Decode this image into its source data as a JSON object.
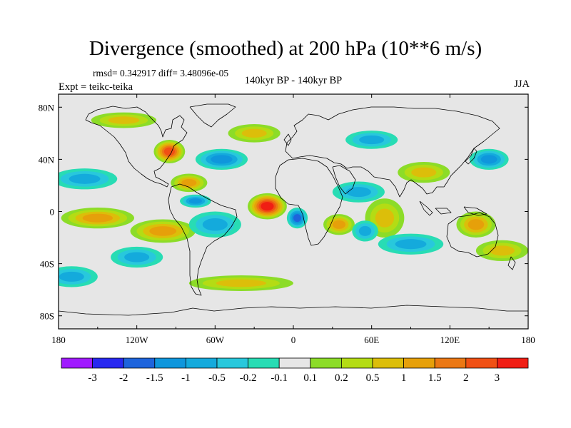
{
  "title": "Divergence (smoothed) at 200 hPa (10**6 m/s)",
  "stats": "rmsd= 0.342917 diff= 3.48096e-05",
  "experiment": "Expt = teikc-teika",
  "period": "140kyr BP - 140kyr BP",
  "season": "JJA",
  "map": {
    "projection": "cylindrical equidistant",
    "lon_range": [
      -180,
      180
    ],
    "lat_range": [
      -90,
      90
    ],
    "lon_ticks": [
      {
        "value": -180,
        "label": "180"
      },
      {
        "value": -120,
        "label": "120W"
      },
      {
        "value": -60,
        "label": "60W"
      },
      {
        "value": 0,
        "label": "0"
      },
      {
        "value": 60,
        "label": "60E"
      },
      {
        "value": 120,
        "label": "120E"
      },
      {
        "value": 180,
        "label": "180"
      }
    ],
    "lat_ticks": [
      {
        "value": 80,
        "label": "80N"
      },
      {
        "value": 40,
        "label": "40N"
      },
      {
        "value": 0,
        "label": "0"
      },
      {
        "value": -40,
        "label": "40S"
      },
      {
        "value": -80,
        "label": "80S"
      }
    ],
    "background_color": "#e6e6e6",
    "features": [
      {
        "name": "max-central-atlantic",
        "lon": -20,
        "lat": 4,
        "value": 3.2,
        "rlon": 15,
        "rlat": 10
      },
      {
        "name": "max-north-america",
        "lon": -95,
        "lat": 46,
        "value": 2.6,
        "rlon": 12,
        "rlat": 9
      },
      {
        "name": "max-gulf-mexico",
        "lon": -80,
        "lat": 22,
        "value": 1.1,
        "rlon": 14,
        "rlat": 7
      },
      {
        "name": "max-sw-pacific",
        "lon": -150,
        "lat": -5,
        "value": 1.4,
        "rlon": 28,
        "rlat": 8
      },
      {
        "name": "max-e-pacific",
        "lon": -100,
        "lat": -15,
        "value": 1.0,
        "rlon": 25,
        "rlat": 9
      },
      {
        "name": "max-e-africa",
        "lon": 35,
        "lat": -10,
        "value": 1.2,
        "rlon": 12,
        "rlat": 8
      },
      {
        "name": "max-indian-ocean",
        "lon": 70,
        "lat": -5,
        "value": 0.9,
        "rlon": 15,
        "rlat": 15
      },
      {
        "name": "max-w-pacific",
        "lon": 140,
        "lat": -10,
        "value": 1.3,
        "rlon": 15,
        "rlat": 10
      },
      {
        "name": "max-s-pacific",
        "lon": 160,
        "lat": -30,
        "value": 0.8,
        "rlon": 20,
        "rlat": 8
      },
      {
        "name": "max-asia",
        "lon": 100,
        "lat": 30,
        "value": 0.8,
        "rlon": 20,
        "rlat": 8
      },
      {
        "name": "max-arctic",
        "lon": -130,
        "lat": 70,
        "value": 0.6,
        "rlon": 25,
        "rlat": 6
      },
      {
        "name": "max-s-ocean",
        "lon": -40,
        "lat": -55,
        "value": 0.5,
        "rlon": 40,
        "rlat": 6
      },
      {
        "name": "max-n-atlantic",
        "lon": -30,
        "lat": 60,
        "value": 0.6,
        "rlon": 20,
        "rlat": 7
      },
      {
        "name": "min-n-atlantic",
        "lon": -55,
        "lat": 40,
        "value": -1.3,
        "rlon": 20,
        "rlat": 8
      },
      {
        "name": "min-caribbean",
        "lon": -75,
        "lat": 8,
        "value": -1.1,
        "rlon": 12,
        "rlat": 5
      },
      {
        "name": "min-s-america",
        "lon": -60,
        "lat": -10,
        "value": -0.8,
        "rlon": 20,
        "rlat": 10
      },
      {
        "name": "min-w-africa",
        "lon": 3,
        "lat": -5,
        "value": -1.6,
        "rlon": 8,
        "rlat": 8
      },
      {
        "name": "min-arabia",
        "lon": 50,
        "lat": 15,
        "value": -0.9,
        "rlon": 20,
        "rlat": 8
      },
      {
        "name": "min-nw-pacific",
        "lon": 150,
        "lat": 40,
        "value": -1.0,
        "rlon": 15,
        "rlat": 8
      },
      {
        "name": "min-c-pacific",
        "lon": -160,
        "lat": 25,
        "value": -0.9,
        "rlon": 25,
        "rlat": 8
      },
      {
        "name": "min-s-indian",
        "lon": 90,
        "lat": -25,
        "value": -0.8,
        "rlon": 25,
        "rlat": 8
      },
      {
        "name": "min-se-pacific",
        "lon": -120,
        "lat": -35,
        "value": -0.9,
        "rlon": 20,
        "rlat": 8
      },
      {
        "name": "min-siberia",
        "lon": 60,
        "lat": 55,
        "value": -0.8,
        "rlon": 20,
        "rlat": 7
      },
      {
        "name": "min-sw-pacific",
        "lon": -170,
        "lat": -50,
        "value": -0.7,
        "rlon": 20,
        "rlat": 8
      },
      {
        "name": "min-w-indian",
        "lon": 55,
        "lat": -15,
        "value": -0.7,
        "rlon": 10,
        "rlat": 8
      }
    ]
  },
  "colorbar": {
    "labels": [
      "-3",
      "-2",
      "-1.5",
      "-1",
      "-0.5",
      "-0.2",
      "-0.1",
      "0.1",
      "0.2",
      "0.5",
      "1",
      "1.5",
      "2",
      "3"
    ],
    "thresholds": [
      -3,
      -2,
      -1.5,
      -1,
      -0.5,
      -0.2,
      -0.1,
      0.1,
      0.2,
      0.5,
      1,
      1.5,
      2,
      3
    ],
    "colors": [
      "#a01aff",
      "#2828f0",
      "#1e64dc",
      "#0f96dc",
      "#14aadc",
      "#28c8dc",
      "#28dcb4",
      "#e6e6e6",
      "#8cdc28",
      "#b4dc14",
      "#dcbe0a",
      "#e6a00a",
      "#eb7814",
      "#f05014",
      "#f01e14"
    ]
  }
}
